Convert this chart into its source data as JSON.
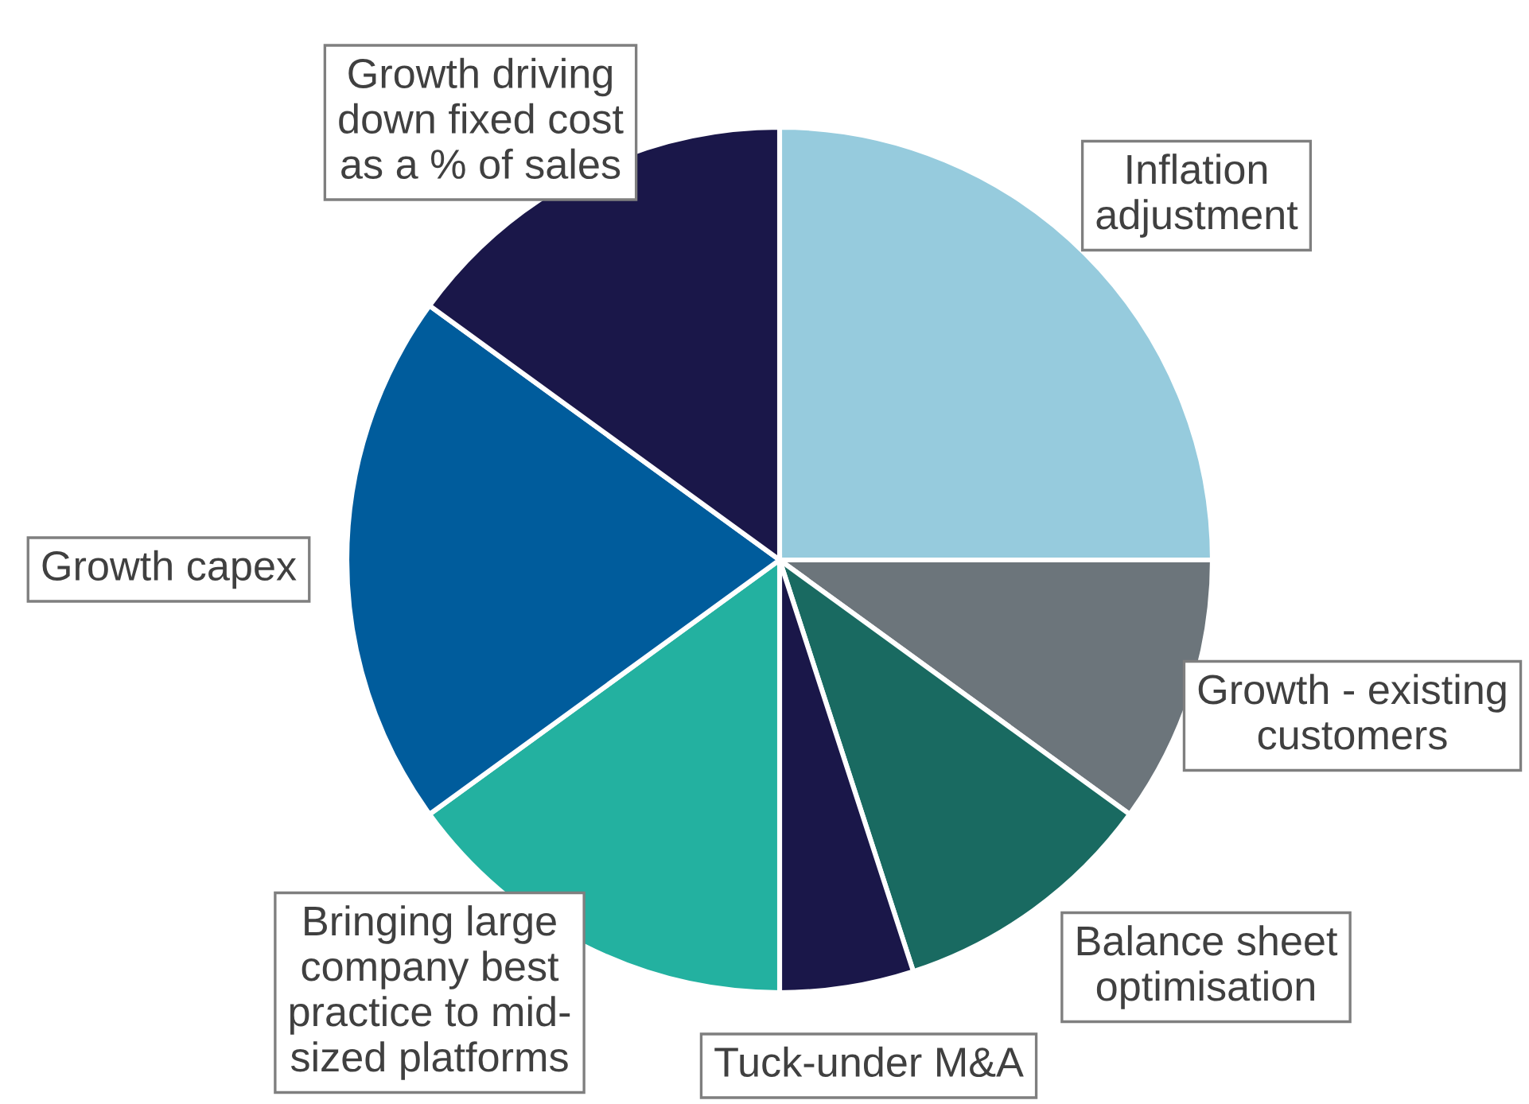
{
  "chart_data": {
    "type": "pie",
    "categories": [
      "Inflation\nadjustment",
      "Growth - existing\ncustomers",
      "Balance sheet\noptimisation",
      "Tuck-under M&A",
      "Bringing large\ncompany best\npractice to mid-\nsized platforms",
      "Growth capex",
      "Growth driving\ndown fixed cost\nas a % of sales"
    ],
    "values": [
      25,
      10,
      10,
      5,
      15,
      20,
      15
    ],
    "colors": [
      "#96cbdd",
      "#6c757b",
      "#196a61",
      "#1a1749",
      "#23b1a0",
      "#005c9c",
      "#1a1749"
    ]
  }
}
